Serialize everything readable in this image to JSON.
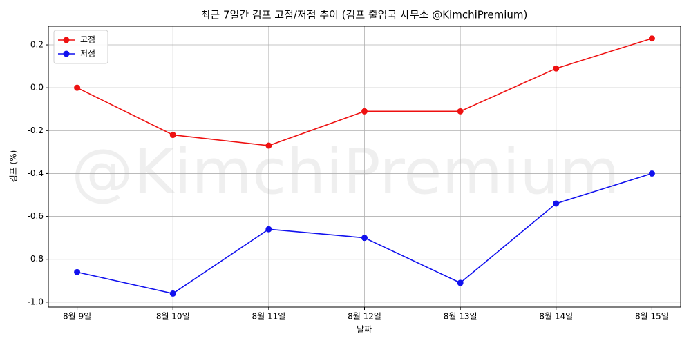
{
  "chart_data": {
    "type": "line",
    "title": "최근 7일간 김프 고점/저점 추이 (김프 출입국 사무소 @KimchiPremium)",
    "watermark": "@KimchiPremium",
    "x_label": "날짜",
    "y_label": "김프 (%)",
    "categories": [
      "8월 9일",
      "8월 10일",
      "8월 11일",
      "8월 12일",
      "8월 13일",
      "8월 14일",
      "8월 15일"
    ],
    "series": [
      {
        "name": "고점",
        "color": "#ee1111",
        "values": [
          0.0,
          -0.22,
          -0.27,
          -0.11,
          -0.11,
          0.09,
          0.23
        ]
      },
      {
        "name": "저점",
        "color": "#1111ee",
        "values": [
          -0.86,
          -0.96,
          -0.66,
          -0.7,
          -0.91,
          -0.54,
          -0.4
        ]
      }
    ],
    "ylim": [
      -1.023,
      0.287
    ],
    "yticks": [
      {
        "value": -1.0,
        "label": "-1.0"
      },
      -0.8,
      -0.6,
      -0.4,
      -0.2,
      {
        "value": 0,
        "label": "0.0"
      },
      0.2
    ],
    "grid": true,
    "legend": "upper left"
  }
}
